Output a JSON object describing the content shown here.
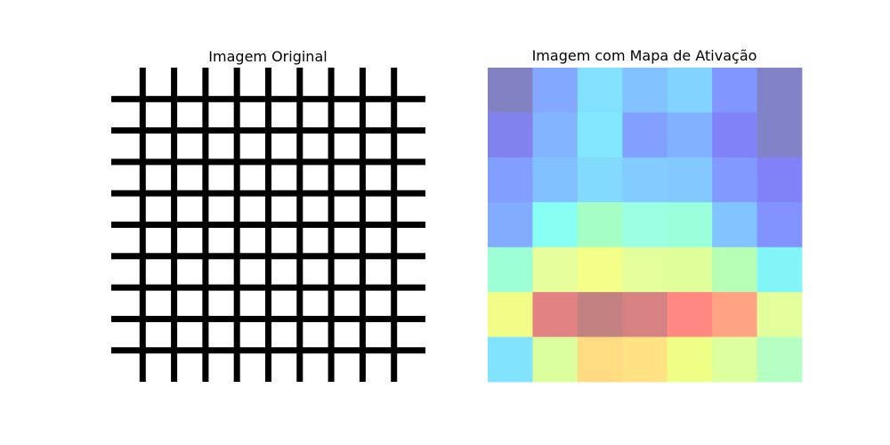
{
  "chart_data": [
    {
      "type": "image",
      "title": "Imagem Original",
      "axes": "off",
      "grid_pattern": {
        "vertical_lines": 9,
        "horizontal_lines": 9,
        "line_color": "#000000",
        "background": "#ffffff"
      }
    },
    {
      "type": "heatmap",
      "title": "Imagem com Mapa de Ativação",
      "axes": "off",
      "rows": 7,
      "cols": 7,
      "cell_colors": [
        [
          "#8282c2",
          "#82a8ff",
          "#82e1ff",
          "#82c2ff",
          "#82d3ff",
          "#8296ff",
          "#8282c8"
        ],
        [
          "#8282ee",
          "#82b4ff",
          "#82e8ff",
          "#82a0ff",
          "#82b1ff",
          "#8282f8",
          "#8282c8"
        ],
        [
          "#829fff",
          "#82c1ff",
          "#82dbff",
          "#82ccff",
          "#82c8ff",
          "#8299ff",
          "#8282f8"
        ],
        [
          "#82adff",
          "#87fff3",
          "#a5ffc5",
          "#9bffe2",
          "#9affdb",
          "#82c4ff",
          "#8293ff"
        ],
        [
          "#9dffd6",
          "#e6ff9c",
          "#f3ff86",
          "#e2ff9c",
          "#e0ff9b",
          "#b6ffb6",
          "#82f5f8"
        ],
        [
          "#f0fc86",
          "#e28282",
          "#c28282",
          "#d68282",
          "#ff8882",
          "#ffa382",
          "#e2ff9c"
        ],
        [
          "#82e3ff",
          "#dcff9d",
          "#ffdb82",
          "#ffe282",
          "#efff86",
          "#ddff9d",
          "#b6ffc2"
        ]
      ]
    }
  ]
}
